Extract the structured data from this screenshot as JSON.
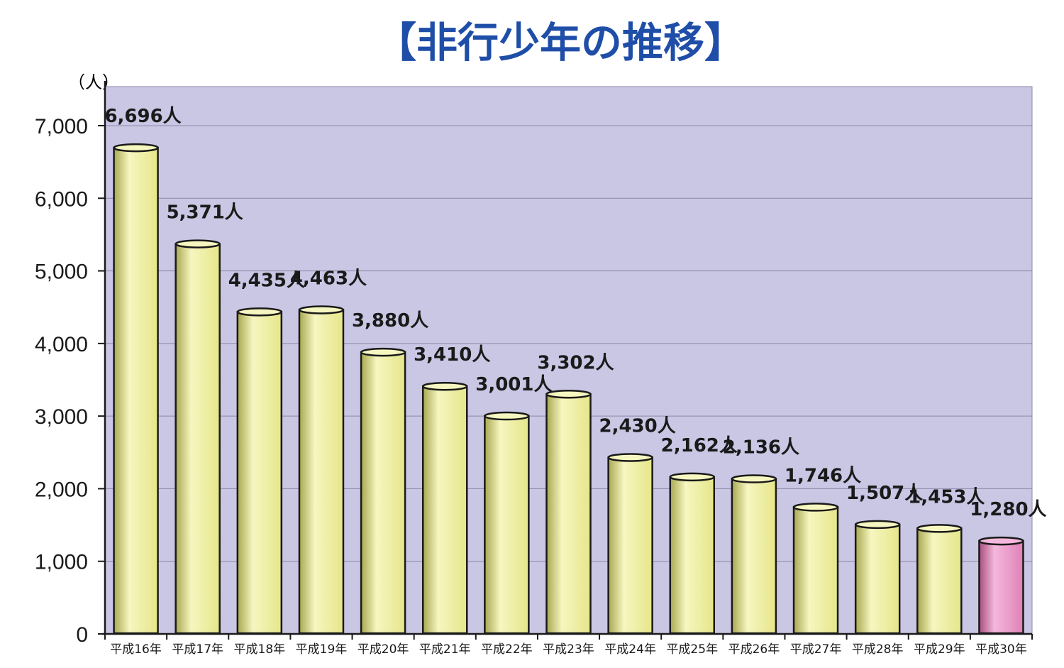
{
  "chart_data": {
    "type": "bar",
    "title": "【非行少年の推移】",
    "unit_label": "（人）",
    "ylim": [
      0,
      7000
    ],
    "y_ticks": [
      "0",
      "1,000",
      "2,000",
      "3,000",
      "4,000",
      "5,000",
      "6,000",
      "7,000"
    ],
    "grid": true,
    "categories": [
      "平成16年",
      "平成17年",
      "平成18年",
      "平成19年",
      "平成20年",
      "平成21年",
      "平成22年",
      "平成23年",
      "平成24年",
      "平成25年",
      "平成26年",
      "平成27年",
      "平成28年",
      "平成29年",
      "平成30年"
    ],
    "values": [
      6696,
      5371,
      4435,
      4463,
      3880,
      3410,
      3001,
      3302,
      2430,
      2162,
      2136,
      1746,
      1507,
      1453,
      1280
    ],
    "value_labels": [
      "6,696人",
      "5,371人",
      "4,435人",
      "4,463人",
      "3,880人",
      "3,410人",
      "3,001人",
      "3,302人",
      "2,430人",
      "2,162人",
      "2,136人",
      "1,746人",
      "1,507人",
      "1,453人",
      "1,280人"
    ],
    "colors": {
      "title": "#1f4ea8",
      "plot_background": "#c9c7e4",
      "gridline": "#8a88a8",
      "bar": "#e6e68a",
      "bar_highlight": "#f6f6c0",
      "bar_shadow": "#a8a850",
      "bar_outline": "#1a1a1a",
      "highlight_bar": "#e081b8",
      "highlight_bar_light": "#f4b8dc",
      "highlight_bar_shadow": "#a8507e",
      "text": "#1a1a1a"
    },
    "highlight_index": 14
  }
}
